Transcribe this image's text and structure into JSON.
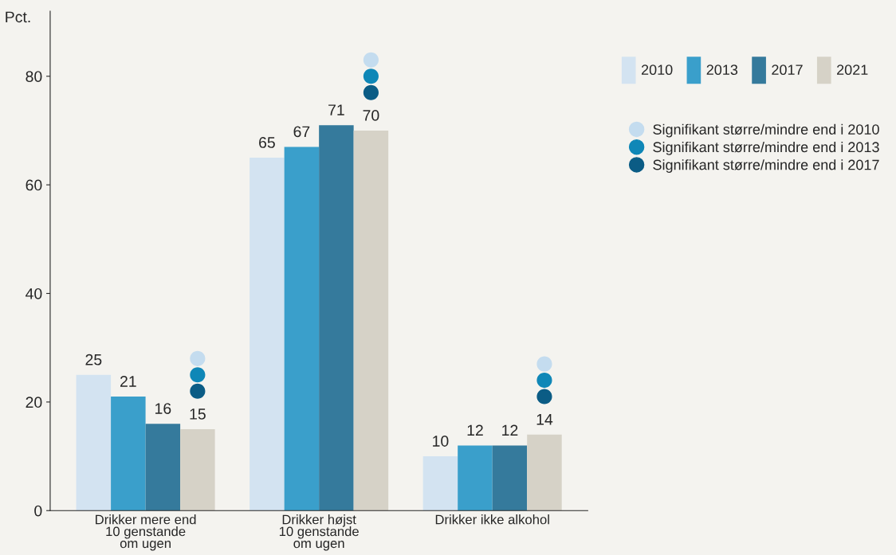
{
  "chart_data": {
    "type": "bar",
    "ylabel": "Pct.",
    "categories": [
      "Drikker mere end\n10 genstande\nom ugen",
      "Drikker højst\n10 genstande\nom ugen",
      "Drikker ikke alkohol"
    ],
    "series": [
      {
        "name": "2010",
        "color": "#d3e3f1",
        "values": [
          25,
          65,
          10
        ],
        "value_labels": [
          "25",
          "65",
          "10"
        ]
      },
      {
        "name": "2013",
        "color": "#3a9fcb",
        "values": [
          21,
          67,
          12
        ],
        "value_labels": [
          "21",
          "67",
          "12"
        ]
      },
      {
        "name": "2017",
        "color": "#357a9c",
        "values": [
          16,
          71,
          12
        ],
        "value_labels": [
          "16",
          "71",
          "12"
        ]
      },
      {
        "name": "2021",
        "color": "#d6d2c7",
        "values": [
          15,
          70,
          14
        ],
        "value_labels": [
          "15",
          "70",
          "14"
        ]
      },
      {
        "name": "Signifikant større/mindre end i 2010",
        "type": "scatter",
        "color": "#c4dcef",
        "x": [
          "Drikker mere end\n10 genstande\nom ugen",
          "Drikker højst\n10 genstande\nom ugen",
          "Drikker ikke alkohol"
        ],
        "values": [
          28,
          83,
          27
        ]
      },
      {
        "name": "Signifikant større/mindre end i 2013",
        "type": "scatter",
        "color": "#0f87b7",
        "x": [
          "Drikker mere end\n10 genstande\nom ugen",
          "Drikker højst\n10 genstande\nom ugen",
          "Drikker ikke alkohol"
        ],
        "values": [
          25,
          80,
          24
        ]
      },
      {
        "name": "Signifikant større/mindre end i 2017",
        "type": "scatter",
        "color": "#0b5c85",
        "x": [
          "Drikker mere end\n10 genstande\nom ugen",
          "Drikker højst\n10 genstande\nom ugen",
          "Drikker ikke alkohol"
        ],
        "values": [
          22,
          77,
          21
        ]
      }
    ],
    "ylim": [
      0,
      92
    ],
    "yticks": [
      0,
      20,
      40,
      60,
      80
    ],
    "grid": false,
    "legend": "right",
    "marker": "circle"
  }
}
